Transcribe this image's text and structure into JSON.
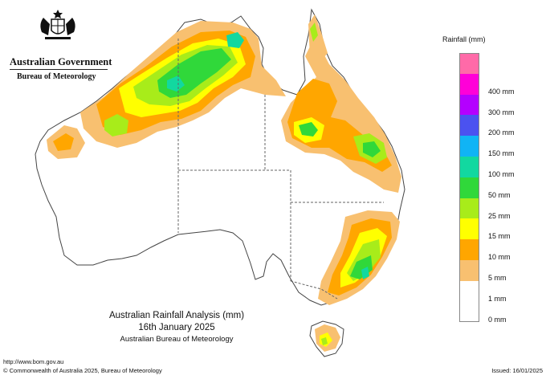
{
  "header": {
    "government": "Australian Government",
    "bureau": "Bureau of Meteorology"
  },
  "legend": {
    "title": "Rainfall (mm)",
    "items": [
      {
        "label": "",
        "color": "#ff6aa8"
      },
      {
        "label": "400 mm",
        "color": "#ff00d8"
      },
      {
        "label": "300 mm",
        "color": "#b400ff"
      },
      {
        "label": "200 mm",
        "color": "#4b52f0"
      },
      {
        "label": "150 mm",
        "color": "#10b4f5"
      },
      {
        "label": "100 mm",
        "color": "#12d8a0"
      },
      {
        "label": "50 mm",
        "color": "#30d83a"
      },
      {
        "label": "25 mm",
        "color": "#a8ec1a"
      },
      {
        "label": "15 mm",
        "color": "#ffff00"
      },
      {
        "label": "10 mm",
        "color": "#ffa600"
      },
      {
        "label": "5 mm",
        "color": "#f8c070"
      },
      {
        "label": "1 mm",
        "color": "#ffffff"
      },
      {
        "label": "0 mm",
        "color": "#ffffff"
      }
    ]
  },
  "caption": {
    "title": "Australian Rainfall Analysis (mm)",
    "date": "16th January 2025",
    "agency": "Australian Bureau of Meteorology"
  },
  "footer": {
    "url": "http://www.bom.gov.au",
    "copyright": "© Commonwealth of Australia 2025, Bureau of Meteorology",
    "issued": "Issued: 16/01/2025"
  },
  "map": {
    "colors": {
      "land": "#ffffff",
      "outline": "#444444",
      "border": "#666666",
      "r1": "#f8c070",
      "r5": "#ffa600",
      "r10": "#ffff00",
      "r15": "#a8ec1a",
      "r25": "#30d83a",
      "r50": "#12d8a0"
    }
  }
}
